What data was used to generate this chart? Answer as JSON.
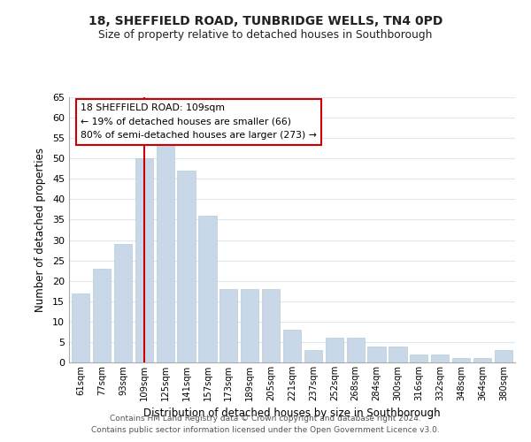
{
  "title": "18, SHEFFIELD ROAD, TUNBRIDGE WELLS, TN4 0PD",
  "subtitle": "Size of property relative to detached houses in Southborough",
  "xlabel": "Distribution of detached houses by size in Southborough",
  "ylabel": "Number of detached properties",
  "bar_color": "#c8d8e8",
  "bar_edge_color": "#b8ccd8",
  "categories": [
    "61sqm",
    "77sqm",
    "93sqm",
    "109sqm",
    "125sqm",
    "141sqm",
    "157sqm",
    "173sqm",
    "189sqm",
    "205sqm",
    "221sqm",
    "237sqm",
    "252sqm",
    "268sqm",
    "284sqm",
    "300sqm",
    "316sqm",
    "332sqm",
    "348sqm",
    "364sqm",
    "380sqm"
  ],
  "values": [
    17,
    23,
    29,
    50,
    54,
    47,
    36,
    18,
    18,
    18,
    8,
    3,
    6,
    6,
    4,
    4,
    2,
    2,
    1,
    1,
    3
  ],
  "ylim": [
    0,
    65
  ],
  "yticks": [
    0,
    5,
    10,
    15,
    20,
    25,
    30,
    35,
    40,
    45,
    50,
    55,
    60,
    65
  ],
  "vline_x_index": 3,
  "vline_color": "#cc0000",
  "annotation_title": "18 SHEFFIELD ROAD: 109sqm",
  "annotation_line1": "← 19% of detached houses are smaller (66)",
  "annotation_line2": "80% of semi-detached houses are larger (273) →",
  "annotation_box_color": "#ffffff",
  "annotation_box_edge": "#cc0000",
  "footer1": "Contains HM Land Registry data © Crown copyright and database right 2024.",
  "footer2": "Contains public sector information licensed under the Open Government Licence v3.0.",
  "background_color": "#ffffff",
  "grid_color": "#dde8f0"
}
